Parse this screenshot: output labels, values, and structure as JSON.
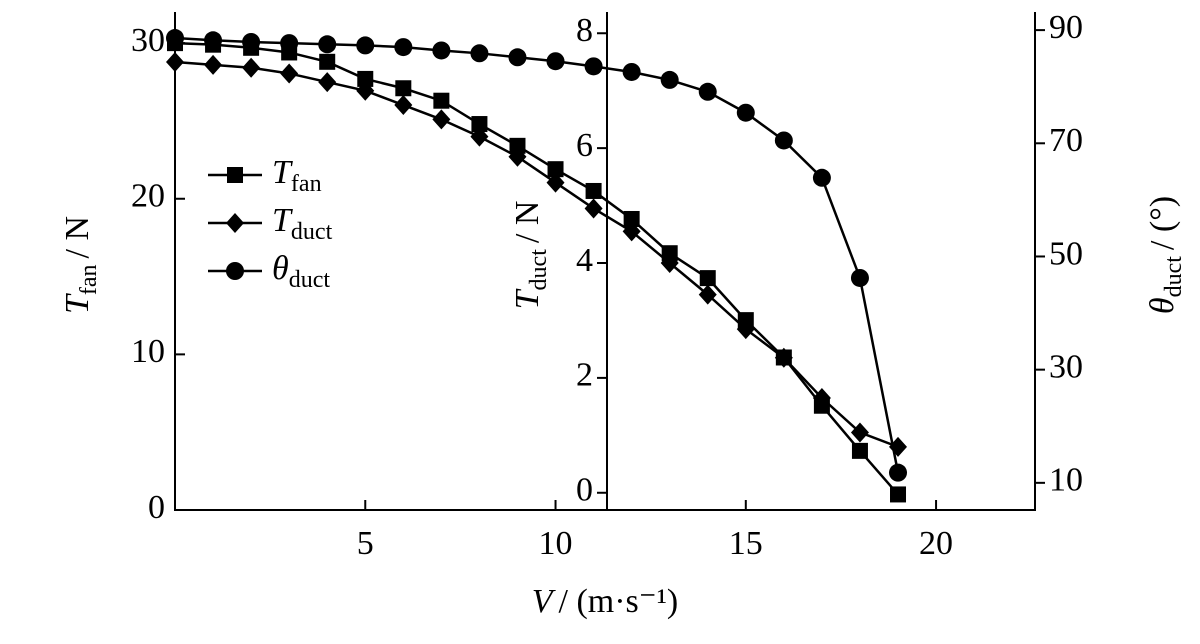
{
  "chart_data": {
    "type": "line",
    "x_label": {
      "symbol": "V",
      "unit": "/ (m·s⁻¹)"
    },
    "y_label": {
      "symbol": "T",
      "subscript": "fan",
      "unit": "/ N"
    },
    "y2_label": {
      "symbol": "T",
      "subscript": "duct",
      "unit": "/ N"
    },
    "y3_label": {
      "symbol": "θ",
      "subscript": "duct",
      "unit": "/ (°)"
    },
    "x": [
      0,
      1,
      2,
      3,
      4,
      5,
      6,
      7,
      8,
      9,
      10,
      11,
      12,
      13,
      14,
      15,
      16,
      17,
      18,
      19
    ],
    "xlim": [
      0,
      22.6
    ],
    "xticks": [
      5,
      10,
      15,
      20
    ],
    "ylim": [
      0,
      32
    ],
    "yticks": [
      0,
      10,
      20,
      30
    ],
    "y2lim": [
      -0.3,
      8.37
    ],
    "y2ticks": [
      0,
      2,
      4,
      6,
      8
    ],
    "y3lim": [
      5.2,
      93.2
    ],
    "y3ticks": [
      10,
      30,
      50,
      70,
      90
    ],
    "series": [
      {
        "name": "T",
        "subscript": "fan",
        "marker": "square",
        "color": "#000",
        "axis": "y",
        "values": [
          30.0,
          29.9,
          29.7,
          29.4,
          28.8,
          27.7,
          27.1,
          26.3,
          24.8,
          23.4,
          21.9,
          20.5,
          18.7,
          16.5,
          14.9,
          12.2,
          9.8,
          6.7,
          3.8,
          1.0
        ]
      },
      {
        "name": "T",
        "subscript": "duct",
        "marker": "diamond",
        "color": "#000",
        "axis": "y2",
        "values": [
          7.5,
          7.45,
          7.4,
          7.3,
          7.15,
          7.0,
          6.75,
          6.5,
          6.2,
          5.85,
          5.4,
          4.95,
          4.55,
          4.0,
          3.45,
          2.85,
          2.35,
          1.65,
          1.05,
          0.8
        ]
      },
      {
        "name": "θ",
        "subscript": "duct",
        "marker": "circle",
        "color": "#000",
        "axis": "y3",
        "values": [
          88.6,
          88.2,
          87.9,
          87.7,
          87.5,
          87.3,
          87.0,
          86.4,
          85.9,
          85.2,
          84.5,
          83.6,
          82.6,
          81.2,
          79.1,
          75.4,
          70.5,
          63.9,
          46.2,
          11.8
        ]
      }
    ]
  }
}
